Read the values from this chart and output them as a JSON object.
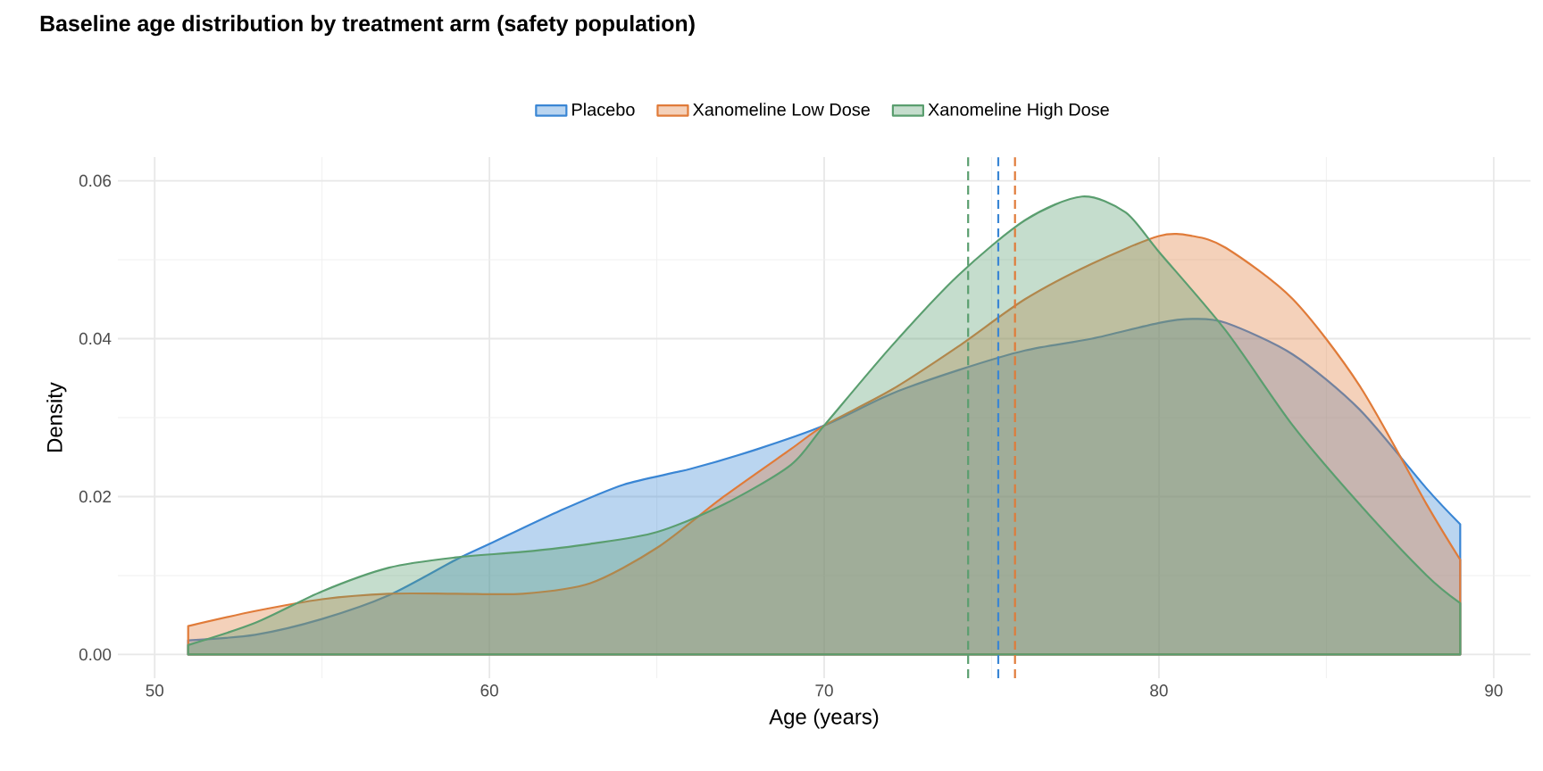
{
  "chart_data": {
    "type": "area",
    "title": "Baseline age distribution by treatment arm (safety population)",
    "xlabel": "Age (years)",
    "ylabel": "Density",
    "xlim": [
      48.9,
      91.1
    ],
    "ylim": [
      -0.003,
      0.063
    ],
    "xticks": [
      50,
      60,
      70,
      80,
      90
    ],
    "yticks": [
      {
        "value": 0,
        "label": "0.00"
      },
      {
        "value": 0.02,
        "label": "0.02"
      },
      {
        "value": 0.04,
        "label": "0.04"
      },
      {
        "value": 0.06,
        "label": "0.06"
      }
    ],
    "grid": true,
    "legend": "top",
    "series": [
      {
        "name": "Placebo",
        "color": "#3a86d4",
        "x": [
          51,
          53,
          55,
          57,
          59,
          60,
          62,
          64,
          66,
          68,
          70,
          72,
          74,
          76,
          78,
          80,
          81,
          82,
          84,
          86,
          88,
          89
        ],
        "values": [
          0.0018,
          0.0025,
          0.0045,
          0.0075,
          0.012,
          0.014,
          0.018,
          0.0215,
          0.0235,
          0.026,
          0.029,
          0.033,
          0.036,
          0.0385,
          0.04,
          0.042,
          0.0425,
          0.042,
          0.038,
          0.031,
          0.021,
          0.0165
        ]
      },
      {
        "name": "Xanomeline Low Dose",
        "color": "#e07b39",
        "x": [
          51,
          53,
          55,
          57,
          59,
          61,
          63,
          65,
          67,
          69,
          70,
          72,
          74,
          76,
          78,
          80,
          81,
          82,
          84,
          86,
          88,
          89
        ],
        "values": [
          0.0036,
          0.0055,
          0.007,
          0.0077,
          0.0077,
          0.0077,
          0.009,
          0.0135,
          0.02,
          0.026,
          0.029,
          0.0335,
          0.039,
          0.045,
          0.0495,
          0.053,
          0.053,
          0.0515,
          0.045,
          0.034,
          0.019,
          0.012
        ]
      },
      {
        "name": "Xanomeline High Dose",
        "color": "#5a9e6f",
        "x": [
          51,
          53,
          55,
          57,
          59,
          61,
          63,
          65,
          67,
          69,
          70,
          72,
          74,
          76,
          77.7,
          79,
          80,
          82,
          84,
          86,
          88,
          89
        ],
        "values": [
          0.0012,
          0.004,
          0.008,
          0.011,
          0.0123,
          0.013,
          0.014,
          0.0155,
          0.019,
          0.024,
          0.029,
          0.039,
          0.048,
          0.055,
          0.058,
          0.056,
          0.051,
          0.041,
          0.029,
          0.019,
          0.01,
          0.0065
        ]
      }
    ],
    "ref_lines": [
      {
        "axis": "x",
        "value": 75.2,
        "color": "#3a86d4",
        "line_style": "dashed"
      },
      {
        "axis": "x",
        "value": 75.7,
        "color": "#e07b39",
        "line_style": "dashed"
      },
      {
        "axis": "x",
        "value": 74.3,
        "color": "#5a9e6f",
        "line_style": "dashed"
      }
    ]
  }
}
